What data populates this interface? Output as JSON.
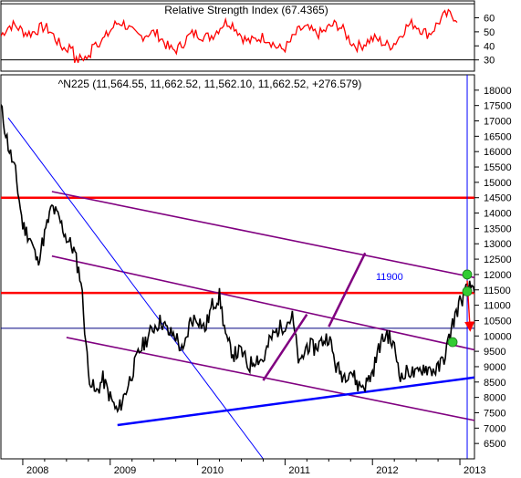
{
  "chart_data": [
    {
      "type": "line",
      "title": "Relative Strength Index (67.4365)",
      "ylim": [
        22,
        72
      ],
      "yticks": [
        30,
        40,
        50,
        60
      ],
      "reference_lines": [
        30,
        70
      ],
      "colors": {
        "line": "#ff0000",
        "ref": "#000000"
      }
    },
    {
      "type": "line",
      "title": "^N225 (11,564.55, 11,662.52, 11,562.10, 11,662.52, +276.579)",
      "xlim": [
        "2007-10-01",
        "2013-03-01"
      ],
      "ylim": [
        6000,
        18500
      ],
      "yticks": [
        6500,
        7000,
        7500,
        8000,
        8500,
        9000,
        9500,
        10000,
        10500,
        11000,
        11500,
        12000,
        12500,
        13000,
        13500,
        14000,
        14500,
        15000,
        15500,
        16000,
        16500,
        17000,
        17500,
        18000
      ],
      "xticks": [
        "2008",
        "2009",
        "2010",
        "2011",
        "2012",
        "2013"
      ],
      "annotation_label": "11900",
      "series": [
        {
          "values": [
            [
              "2007-10",
              17450
            ],
            [
              "2007-11",
              16200
            ],
            [
              "2007-12",
              15300
            ],
            [
              "2008-01",
              13600
            ],
            [
              "2008-02",
              13200
            ],
            [
              "2008-03",
              12400
            ],
            [
              "2008-04",
              13300
            ],
            [
              "2008-05",
              14200
            ],
            [
              "2008-06",
              13800
            ],
            [
              "2008-07",
              13200
            ],
            [
              "2008-08",
              12800
            ],
            [
              "2008-09",
              11800
            ],
            [
              "2008-10",
              8800
            ],
            [
              "2008-11",
              8100
            ],
            [
              "2008-12",
              8600
            ],
            [
              "2009-01",
              8000
            ],
            [
              "2009-02",
              7500
            ],
            [
              "2009-03",
              8100
            ],
            [
              "2009-04",
              8800
            ],
            [
              "2009-05",
              9500
            ],
            [
              "2009-06",
              9900
            ],
            [
              "2009-07",
              10300
            ],
            [
              "2009-08",
              10500
            ],
            [
              "2009-09",
              10100
            ],
            [
              "2009-10",
              10000
            ],
            [
              "2009-11",
              9400
            ],
            [
              "2009-12",
              10500
            ],
            [
              "2010-01",
              10600
            ],
            [
              "2010-02",
              10200
            ],
            [
              "2010-03",
              11000
            ],
            [
              "2010-04",
              11300
            ],
            [
              "2010-05",
              9800
            ],
            [
              "2010-06",
              9400
            ],
            [
              "2010-07",
              9500
            ],
            [
              "2010-08",
              9000
            ],
            [
              "2010-09",
              9300
            ],
            [
              "2010-10",
              9200
            ],
            [
              "2010-11",
              9900
            ],
            [
              "2010-12",
              10200
            ],
            [
              "2011-01",
              10400
            ],
            [
              "2011-02",
              10600
            ],
            [
              "2011-03",
              9000
            ],
            [
              "2011-04",
              9700
            ],
            [
              "2011-05",
              9600
            ],
            [
              "2011-06",
              9800
            ],
            [
              "2011-07",
              10000
            ],
            [
              "2011-08",
              9000
            ],
            [
              "2011-09",
              8700
            ],
            [
              "2011-10",
              8900
            ],
            [
              "2011-11",
              8400
            ],
            [
              "2011-12",
              8400
            ],
            [
              "2012-01",
              8800
            ],
            [
              "2012-02",
              9700
            ],
            [
              "2012-03",
              10100
            ],
            [
              "2012-04",
              9600
            ],
            [
              "2012-05",
              8600
            ],
            [
              "2012-06",
              8900
            ],
            [
              "2012-07",
              8700
            ],
            [
              "2012-08",
              9000
            ],
            [
              "2012-09",
              8900
            ],
            [
              "2012-10",
              8900
            ],
            [
              "2012-11",
              9400
            ],
            [
              "2012-12",
              10400
            ],
            [
              "2013-01",
              11100
            ],
            [
              "2013-02",
              11500
            ],
            [
              "2013-03",
              11660
            ]
          ]
        }
      ],
      "reference_lines": [
        {
          "type": "horizontal",
          "y": 14500,
          "color": "#ff0000"
        },
        {
          "type": "horizontal",
          "y": 11400,
          "color": "#ff0000"
        },
        {
          "type": "horizontal",
          "y": 10250,
          "color": "#000080"
        },
        {
          "type": "vertical",
          "x": "2013-02",
          "color": "#0000ff"
        },
        {
          "type": "trend",
          "from": [
            "2008-05",
            14700
          ],
          "to": [
            "2013-03",
            11900
          ],
          "color": "#800080"
        },
        {
          "type": "trend",
          "from": [
            "2008-05",
            12600
          ],
          "to": [
            "2013-03",
            9550
          ],
          "color": "#800080"
        },
        {
          "type": "trend",
          "from": [
            "2008-07",
            9950
          ],
          "to": [
            "2013-03",
            7250
          ],
          "color": "#800080"
        },
        {
          "type": "trend",
          "from": [
            "2009-02",
            7100
          ],
          "to": [
            "2013-03",
            8650
          ],
          "color": "#0000ff"
        },
        {
          "type": "trend",
          "from": [
            "2007-11",
            17100
          ],
          "to": [
            "2010-10",
            6000
          ],
          "color": "#0000ff"
        }
      ],
      "markers": [
        {
          "x": "2012-12",
          "y": 9800,
          "color": "#33cc33"
        },
        {
          "x": "2013-02",
          "y": 11450,
          "color": "#33cc33"
        },
        {
          "x": "2013-02",
          "y": 12000,
          "color": "#33cc33"
        }
      ]
    }
  ]
}
